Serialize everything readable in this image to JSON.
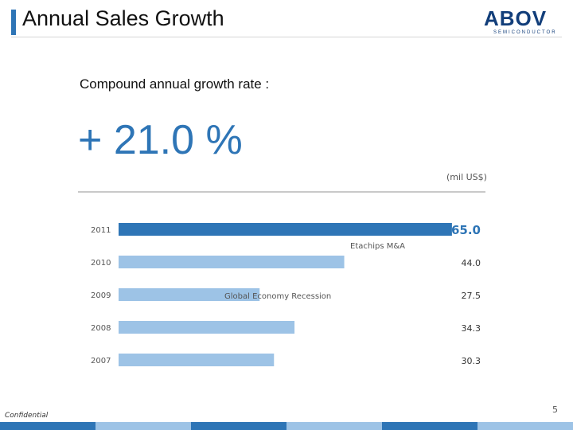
{
  "header": {
    "title": "Annual Sales Growth",
    "logo_text": "ABOV",
    "logo_subtext": "SEMICONDUCTOR"
  },
  "summary": {
    "label": "Compound annual growth rate :",
    "value": "+ 21.0 %"
  },
  "chart_data": {
    "type": "bar",
    "orientation": "horizontal",
    "unit_label": "(mil US$)",
    "categories": [
      "2011",
      "2010",
      "2009",
      "2008",
      "2007"
    ],
    "values": [
      65.0,
      44.0,
      27.5,
      34.3,
      30.3
    ],
    "value_labels": [
      "65.0",
      "44.0",
      "27.5",
      "34.3",
      "30.3"
    ],
    "highlight": "2011",
    "annotations": [
      {
        "category": "2011",
        "text": "Etachips M&A"
      },
      {
        "category": "2009",
        "text": "Global Economy Recession"
      }
    ],
    "xlim": [
      0,
      72
    ],
    "colors": {
      "highlight": "#2e75b6",
      "normal": "#9dc3e6"
    }
  },
  "footer": {
    "confidential": "Confidential",
    "page_number": "5",
    "bar_colors": [
      "#2e75b6",
      "#9dc3e6",
      "#2e75b6",
      "#9dc3e6",
      "#2e75b6",
      "#9dc3e6"
    ]
  }
}
